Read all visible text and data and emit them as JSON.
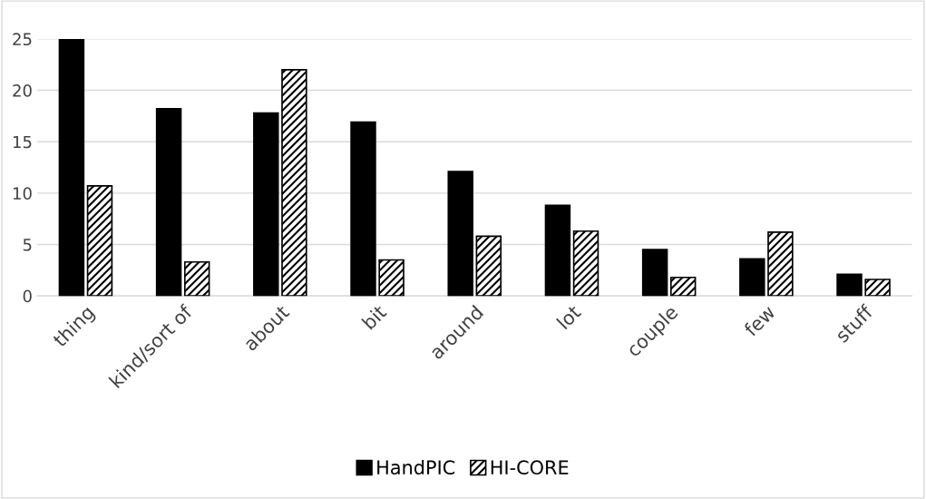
{
  "chart_data": {
    "type": "bar",
    "categories": [
      "thing",
      "kind/sort of",
      "about",
      "bit",
      "around",
      "lot",
      "couple",
      "few",
      "stuff"
    ],
    "series": [
      {
        "name": "HandPIC",
        "color": "#000000",
        "values": [
          25,
          18.2,
          17.8,
          16.9,
          12.1,
          8.8,
          4.5,
          3.6,
          2.1
        ]
      },
      {
        "name": "HI-CORE",
        "color": "#000000",
        "values": [
          10.7,
          3.3,
          22,
          3.5,
          5.8,
          6.3,
          1.8,
          6.2,
          1.6
        ]
      }
    ],
    "ylim": [
      0,
      25
    ],
    "yticks": [
      0,
      5,
      10,
      15,
      20,
      25
    ],
    "grid": "y",
    "legend": "bottom"
  }
}
